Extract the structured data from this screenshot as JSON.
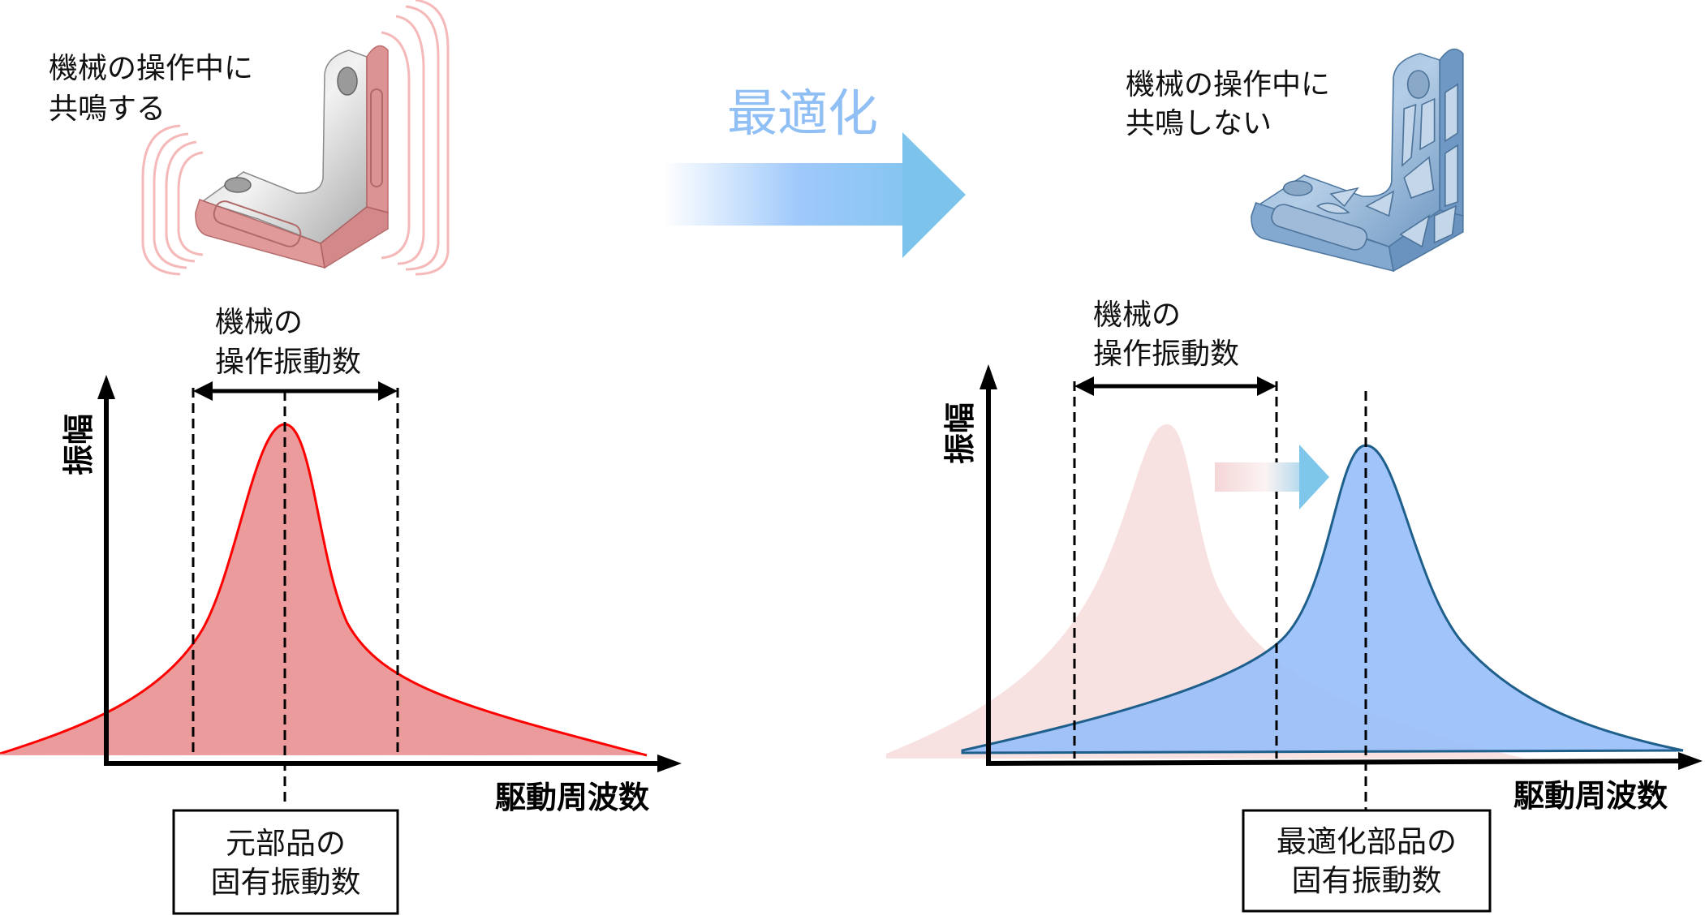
{
  "before": {
    "caption_line1": "機械の操作中に",
    "caption_line2": "共鳴する",
    "range_label_line1": "機械の",
    "range_label_line2": "操作振動数",
    "y_axis_label": "振幅",
    "x_axis_label": "駆動周波数",
    "box_line1": "元部品の",
    "box_line2": "固有振動数"
  },
  "transition": {
    "label": "最適化"
  },
  "after": {
    "caption_line1": "機械の操作中に",
    "caption_line2": "共鳴しない",
    "range_label_line1": "機械の",
    "range_label_line2": "操作振動数",
    "y_axis_label": "振幅",
    "x_axis_label": "駆動周波数",
    "box_line1": "最適化部品の",
    "box_line2": "固有振動数"
  },
  "colors": {
    "original_curve_stroke": "#ff0000",
    "original_curve_fill": "#eb9b9b",
    "ghost_curve_fill": "#f8e1e1",
    "optimized_curve_stroke": "#1f5f8b",
    "optimized_curve_fill": "#94bdf9",
    "arrow_blue": "#7cc4ec",
    "title_blue": "#8fbff5"
  },
  "icons": {
    "original_part": "l-bracket-solid-red-vibrating",
    "optimized_part": "l-bracket-lattice-blue",
    "transition_arrow": "right-arrow-gradient",
    "shift_arrow": "right-arrow-small-gradient"
  }
}
